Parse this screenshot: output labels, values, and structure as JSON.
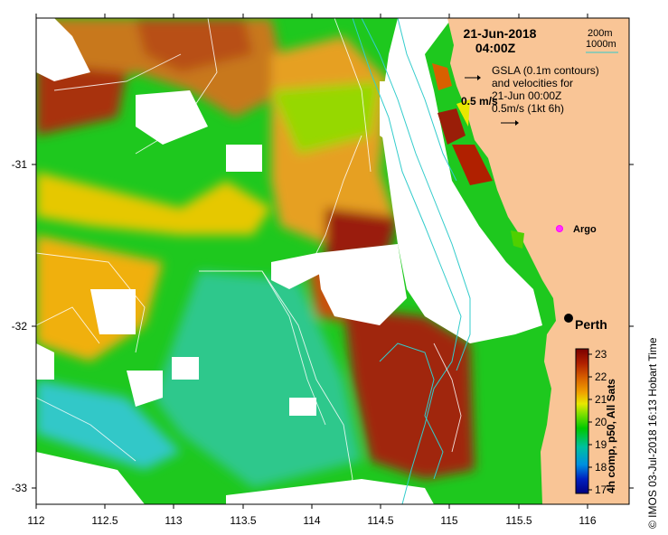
{
  "map": {
    "lon_range": [
      112,
      116.3
    ],
    "lat_range": [
      -33.1,
      -30.1
    ],
    "x_ticks": [
      "112",
      "112.5",
      "113",
      "113.5",
      "114",
      "114.5",
      "115",
      "115.5",
      "116"
    ],
    "y_ticks": [
      "-31",
      "-32",
      "-33"
    ],
    "land_color": "#f9c596",
    "depth_contour_color": "#33cccc",
    "gsla_contour_color": "#ffffff"
  },
  "header": {
    "date": "21-Jun-2018",
    "time": "04:00Z",
    "legend_200m": "200m",
    "legend_1000m": "1000m",
    "gsla_line1": "GSLA (0.1m contours)",
    "gsla_line2": "and velocities for",
    "gsla_line3": "21-Jun 00:00Z",
    "gsla_line4": "0.5m/s (1kt 6h)",
    "velocity_label": "0.5 m/s"
  },
  "places": {
    "argo": "Argo",
    "perth": "Perth"
  },
  "colorbar": {
    "ticks": [
      "23",
      "22",
      "21",
      "20",
      "19",
      "18",
      "17"
    ],
    "label": "4h comp, p50, All Sats",
    "colors": [
      "#7a0000",
      "#b02000",
      "#d86000",
      "#f0a000",
      "#e8e800",
      "#80e000",
      "#00c800",
      "#00c0a0",
      "#0090e0",
      "#0020c0",
      "#000080"
    ]
  },
  "credit": "© IMOS 03-Jul-2018 16:13 Hobart Time"
}
